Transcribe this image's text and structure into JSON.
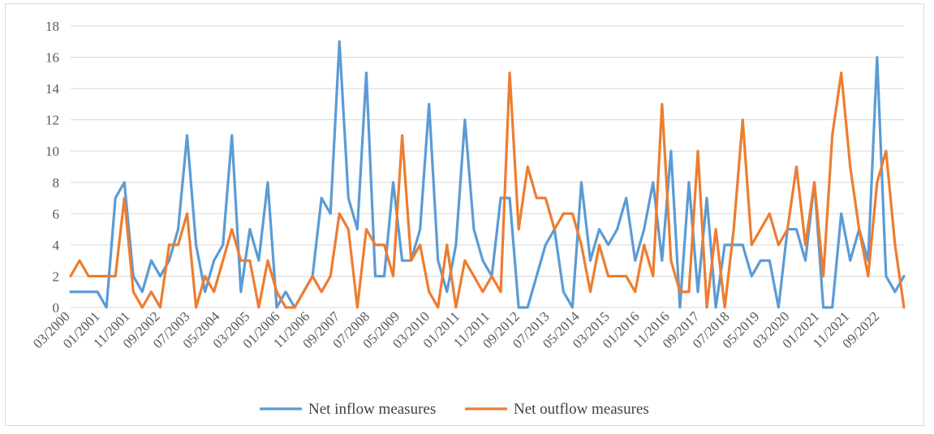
{
  "chart_data": {
    "type": "line",
    "title": "",
    "xlabel": "",
    "ylabel": "",
    "ylim": [
      0,
      18
    ],
    "yticks": [
      "0",
      "2",
      "4",
      "6",
      "8",
      "10",
      "12",
      "14",
      "16",
      "18"
    ],
    "grid": true,
    "legend_position": "bottom",
    "x_tick_labels": [
      "03/2000",
      "01/2001",
      "11/2001",
      "09/2002",
      "07/2003",
      "05/2004",
      "03/2005",
      "01/2006",
      "11/2006",
      "09/2007",
      "07/2008",
      "05/2009",
      "03/2010",
      "01/2011",
      "11/2011",
      "09/2012",
      "07/2013",
      "05/2014",
      "03/2015",
      "01/2016",
      "11/2016",
      "09/2017",
      "07/2018",
      "05/2019",
      "03/2020",
      "01/2021",
      "11/2021",
      "09/2022"
    ],
    "series": [
      {
        "name": "Net inflow measures",
        "color": "#5b9bd5",
        "values": [
          1,
          1,
          1,
          1,
          0,
          7,
          8,
          2,
          1,
          3,
          2,
          3,
          5,
          11,
          4,
          1,
          3,
          4,
          11,
          1,
          5,
          3,
          8,
          0,
          1,
          0,
          1,
          2,
          7,
          6,
          17,
          7,
          5,
          15,
          2,
          2,
          8,
          3,
          3,
          5,
          13,
          3,
          1,
          4,
          12,
          5,
          3,
          2,
          7,
          7,
          0,
          0,
          2,
          4,
          5,
          1,
          0,
          8,
          3,
          5,
          4,
          5,
          7,
          3,
          5,
          8,
          3,
          10,
          0,
          8,
          1,
          7,
          0,
          4,
          4,
          4,
          2,
          3,
          3,
          0,
          5,
          5,
          3,
          8,
          0,
          0,
          6,
          3,
          5,
          3,
          16,
          2,
          1,
          2
        ]
      },
      {
        "name": "Net outflow measures",
        "color": "#ed7d31",
        "values": [
          2,
          3,
          2,
          2,
          2,
          2,
          7,
          1,
          0,
          1,
          0,
          4,
          4,
          6,
          0,
          2,
          1,
          3,
          5,
          3,
          3,
          0,
          3,
          1,
          0,
          0,
          1,
          2,
          1,
          2,
          6,
          5,
          0,
          5,
          4,
          4,
          2,
          11,
          3,
          4,
          1,
          0,
          4,
          0,
          3,
          2,
          1,
          2,
          1,
          15,
          5,
          9,
          7,
          7,
          5,
          6,
          6,
          4,
          1,
          4,
          2,
          2,
          2,
          1,
          4,
          2,
          13,
          3,
          1,
          1,
          10,
          0,
          5,
          0,
          5,
          12,
          4,
          5,
          6,
          4,
          5,
          9,
          4,
          8,
          2,
          11,
          15,
          9,
          5,
          2,
          8,
          10,
          4,
          0
        ]
      }
    ]
  }
}
